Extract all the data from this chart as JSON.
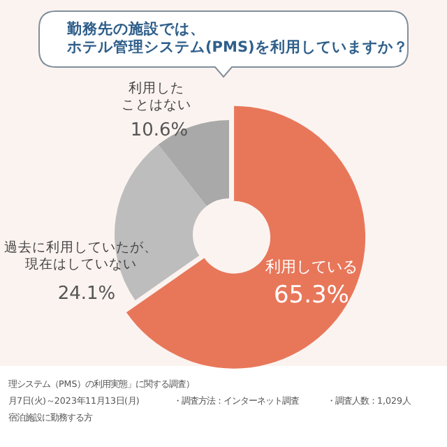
{
  "chart_data": {
    "type": "donut",
    "title": "勤務先の施設では、ホテル管理システム(PMS)を利用していますか？",
    "categories": [
      "利用している",
      "過去に利用していたが、現在はしていない",
      "利用したことはない"
    ],
    "values": [
      65.3,
      24.1,
      10.6
    ],
    "colors": [
      "#e8775a",
      "#bdbdbd",
      "#a9a9a9"
    ],
    "value_labels": [
      "65.3%",
      "24.1%",
      "10.6%"
    ],
    "annotations": [
      "理システム（PMS）の利用実態」に関する調査）",
      "月7日(火)～2023年11月13日(月)",
      "宿泊施設に勤務する方",
      "・調査方法：インターネット調査",
      "・調査人数：1,029人"
    ]
  }
}
